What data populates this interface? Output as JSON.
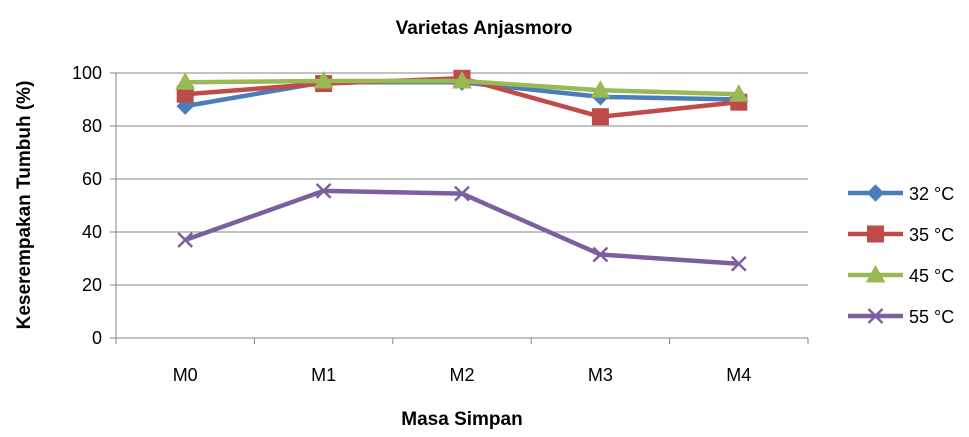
{
  "chart_data": {
    "type": "line",
    "title": "Varietas Anjasmoro",
    "xlabel": "Masa Simpan",
    "ylabel": "Keserempakan Tumbuh (%)",
    "categories": [
      "M0",
      "M1",
      "M2",
      "M3",
      "M4"
    ],
    "ylim": [
      0,
      100
    ],
    "yticks": [
      0,
      20,
      40,
      60,
      80,
      100
    ],
    "grid": true,
    "legend_position": "right",
    "series": [
      {
        "name": "32 °C",
        "color": "#4A7EBB",
        "marker": "diamond",
        "values": [
          87.5,
          96.5,
          96.5,
          91,
          90
        ]
      },
      {
        "name": "35 °C",
        "color": "#BE4B48",
        "marker": "square",
        "values": [
          92,
          96,
          98,
          83.5,
          89
        ]
      },
      {
        "name": "45 °C",
        "color": "#98B954",
        "marker": "triangle",
        "values": [
          96.5,
          97,
          97,
          93.5,
          92
        ]
      },
      {
        "name": "55 °C",
        "color": "#7D5FA0",
        "marker": "x",
        "values": [
          37,
          55.5,
          54.5,
          31.5,
          28
        ]
      }
    ]
  }
}
